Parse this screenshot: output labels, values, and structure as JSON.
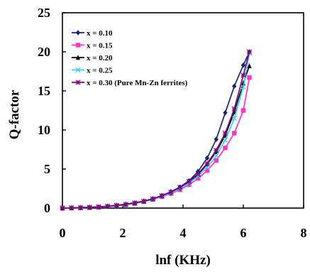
{
  "chart_data": {
    "type": "line",
    "title": "",
    "xlabel": "lnf (KHz)",
    "ylabel": "Q-factor",
    "xlim": [
      0,
      8
    ],
    "ylim": [
      0,
      25
    ],
    "xticks": [
      "0",
      "2",
      "4",
      "6",
      "8"
    ],
    "yticks": [
      "0",
      "5",
      "10",
      "15",
      "20",
      "25"
    ],
    "grid": false,
    "legend_position": "top-left",
    "series": [
      {
        "name": "x = 0.10",
        "color": "#1a237e",
        "marker": "diamond",
        "x": [
          0,
          0.3,
          0.6,
          0.9,
          1.2,
          1.5,
          1.8,
          2.1,
          2.4,
          2.7,
          3.0,
          3.3,
          3.6,
          3.9,
          4.2,
          4.5,
          4.8,
          5.1,
          5.4,
          5.7,
          6.0,
          6.2
        ],
        "y": [
          0,
          0.02,
          0.05,
          0.1,
          0.16,
          0.25,
          0.36,
          0.5,
          0.67,
          0.9,
          1.2,
          1.6,
          2.1,
          2.7,
          3.5,
          4.7,
          6.4,
          8.8,
          12.2,
          15.6,
          18.3,
          20.0
        ]
      },
      {
        "name": "x = 0.15",
        "color": "#ff33cc",
        "marker": "square",
        "x": [
          0,
          0.3,
          0.6,
          0.9,
          1.2,
          1.5,
          1.8,
          2.1,
          2.4,
          2.7,
          3.0,
          3.3,
          3.6,
          3.9,
          4.2,
          4.5,
          4.8,
          5.1,
          5.4,
          5.7,
          6.0,
          6.2
        ],
        "y": [
          0,
          0.02,
          0.04,
          0.08,
          0.13,
          0.2,
          0.3,
          0.43,
          0.6,
          0.82,
          1.1,
          1.45,
          1.85,
          2.35,
          3.0,
          3.8,
          4.8,
          6.1,
          7.7,
          9.6,
          12.5,
          16.7
        ]
      },
      {
        "name": "x = 0.20",
        "color": "#000000",
        "marker": "triangle",
        "x": [
          0,
          0.3,
          0.6,
          0.9,
          1.2,
          1.5,
          1.8,
          2.1,
          2.4,
          2.7,
          3.0,
          3.3,
          3.6,
          3.9,
          4.2,
          4.5,
          4.8,
          5.1,
          5.4,
          5.7,
          6.0,
          6.2
        ],
        "y": [
          0,
          0.02,
          0.05,
          0.09,
          0.15,
          0.22,
          0.32,
          0.46,
          0.64,
          0.87,
          1.16,
          1.55,
          2.0,
          2.55,
          3.3,
          4.3,
          5.6,
          7.2,
          9.3,
          12.3,
          16.0,
          18.2
        ]
      },
      {
        "name": "x = 0.25",
        "color": "#33d6e8",
        "marker": "cross",
        "x": [
          0,
          0.3,
          0.6,
          0.9,
          1.2,
          1.5,
          1.8,
          2.1,
          2.4,
          2.7,
          3.0,
          3.3,
          3.6,
          3.9,
          4.2,
          4.5,
          4.8,
          5.1,
          5.4,
          5.7,
          6.0,
          6.2
        ],
        "y": [
          0,
          0.02,
          0.04,
          0.08,
          0.14,
          0.21,
          0.31,
          0.44,
          0.62,
          0.84,
          1.12,
          1.5,
          1.95,
          2.5,
          3.2,
          4.1,
          5.2,
          6.7,
          8.7,
          11.5,
          15.5,
          19.8
        ]
      },
      {
        "name": "x = 0.30 (Pure Mn-Zn ferrites)",
        "color": "#800080",
        "marker": "star",
        "x": [
          0,
          0.3,
          0.6,
          0.9,
          1.2,
          1.5,
          1.8,
          2.1,
          2.4,
          2.7,
          3.0,
          3.3,
          3.6,
          3.9,
          4.2,
          4.5,
          4.8,
          5.1,
          5.4,
          5.7,
          6.0,
          6.2
        ],
        "y": [
          0,
          0.02,
          0.05,
          0.09,
          0.15,
          0.23,
          0.33,
          0.47,
          0.65,
          0.88,
          1.18,
          1.58,
          2.05,
          2.65,
          3.4,
          4.4,
          5.7,
          7.4,
          9.6,
          12.7,
          17.0,
          20.0
        ]
      }
    ]
  }
}
